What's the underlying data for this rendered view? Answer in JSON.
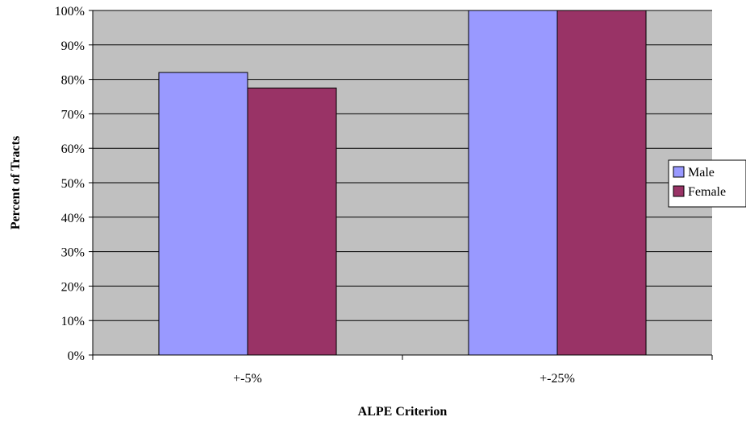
{
  "chart_data": {
    "type": "bar",
    "categories": [
      "+-5%",
      "+-25%"
    ],
    "series": [
      {
        "name": "Male",
        "values": [
          82,
          100
        ],
        "color": "#9999ff"
      },
      {
        "name": "Female",
        "values": [
          77.5,
          100
        ],
        "color": "#993366"
      }
    ],
    "xlabel": "ALPE Criterion",
    "ylabel": "Percent of Tracts",
    "ylim": [
      0,
      100
    ],
    "yticks": [
      "0%",
      "10%",
      "20%",
      "30%",
      "40%",
      "50%",
      "60%",
      "70%",
      "80%",
      "90%",
      "100%"
    ],
    "grid": true,
    "legend_position": "right",
    "plot_background": "#c0c0c0"
  }
}
